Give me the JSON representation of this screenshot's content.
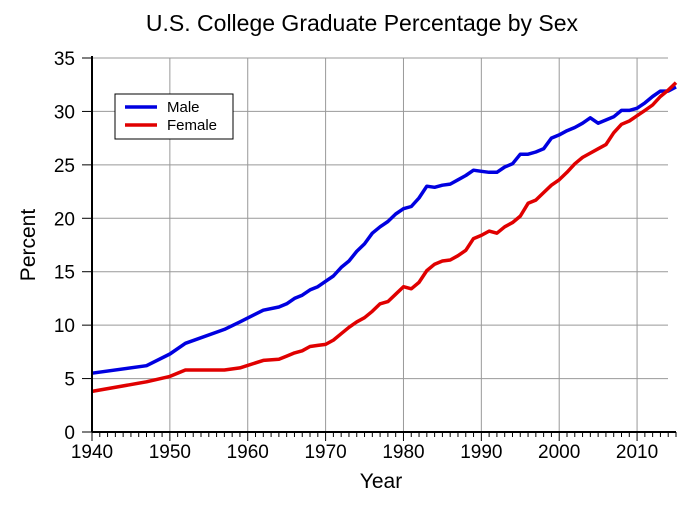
{
  "chart_data": {
    "type": "line",
    "title": "U.S. College Graduate Percentage by Sex",
    "xlabel": "Year",
    "ylabel": "Percent",
    "xlim": [
      1940,
      2015
    ],
    "ylim": [
      0,
      35
    ],
    "xticks": [
      "1940",
      "1950",
      "1960",
      "1970",
      "1980",
      "1990",
      "2000",
      "2010"
    ],
    "yticks": [
      "0",
      "5",
      "10",
      "15",
      "20",
      "25",
      "30",
      "35"
    ],
    "grid": true,
    "legend_position": "top-left",
    "x": [
      1940,
      1947,
      1950,
      1952,
      1957,
      1959,
      1962,
      1964,
      1965,
      1966,
      1967,
      1968,
      1969,
      1970,
      1971,
      1972,
      1973,
      1974,
      1975,
      1976,
      1977,
      1978,
      1979,
      1980,
      1981,
      1982,
      1983,
      1984,
      1985,
      1986,
      1987,
      1988,
      1989,
      1990,
      1991,
      1992,
      1993,
      1994,
      1995,
      1996,
      1997,
      1998,
      1999,
      2000,
      2001,
      2002,
      2003,
      2004,
      2005,
      2006,
      2007,
      2008,
      2009,
      2010,
      2011,
      2012,
      2013,
      2014,
      2015
    ],
    "series": [
      {
        "name": "Male",
        "color": "#0000e0",
        "values": [
          5.5,
          6.2,
          7.3,
          8.3,
          9.6,
          10.3,
          11.4,
          11.7,
          12.0,
          12.5,
          12.8,
          13.3,
          13.6,
          14.1,
          14.6,
          15.4,
          16.0,
          16.9,
          17.6,
          18.6,
          19.2,
          19.7,
          20.4,
          20.9,
          21.1,
          21.9,
          23.0,
          22.9,
          23.1,
          23.2,
          23.6,
          24.0,
          24.5,
          24.4,
          24.3,
          24.3,
          24.8,
          25.1,
          26.0,
          26.0,
          26.2,
          26.5,
          27.5,
          27.8,
          28.2,
          28.5,
          28.9,
          29.4,
          28.9,
          29.2,
          29.5,
          30.1,
          30.1,
          30.3,
          30.8,
          31.4,
          31.9,
          31.9,
          32.3
        ]
      },
      {
        "name": "Female",
        "color": "#e00000",
        "values": [
          3.8,
          4.7,
          5.2,
          5.8,
          5.8,
          6.0,
          6.7,
          6.8,
          7.1,
          7.4,
          7.6,
          8.0,
          8.1,
          8.2,
          8.6,
          9.2,
          9.8,
          10.3,
          10.7,
          11.3,
          12.0,
          12.2,
          12.9,
          13.6,
          13.4,
          14.0,
          15.1,
          15.7,
          16.0,
          16.1,
          16.5,
          17.0,
          18.1,
          18.4,
          18.8,
          18.6,
          19.2,
          19.6,
          20.2,
          21.4,
          21.7,
          22.4,
          23.1,
          23.6,
          24.3,
          25.1,
          25.7,
          26.1,
          26.5,
          26.9,
          28.0,
          28.8,
          29.1,
          29.6,
          30.1,
          30.6,
          31.4,
          32.0,
          32.7
        ]
      }
    ]
  }
}
